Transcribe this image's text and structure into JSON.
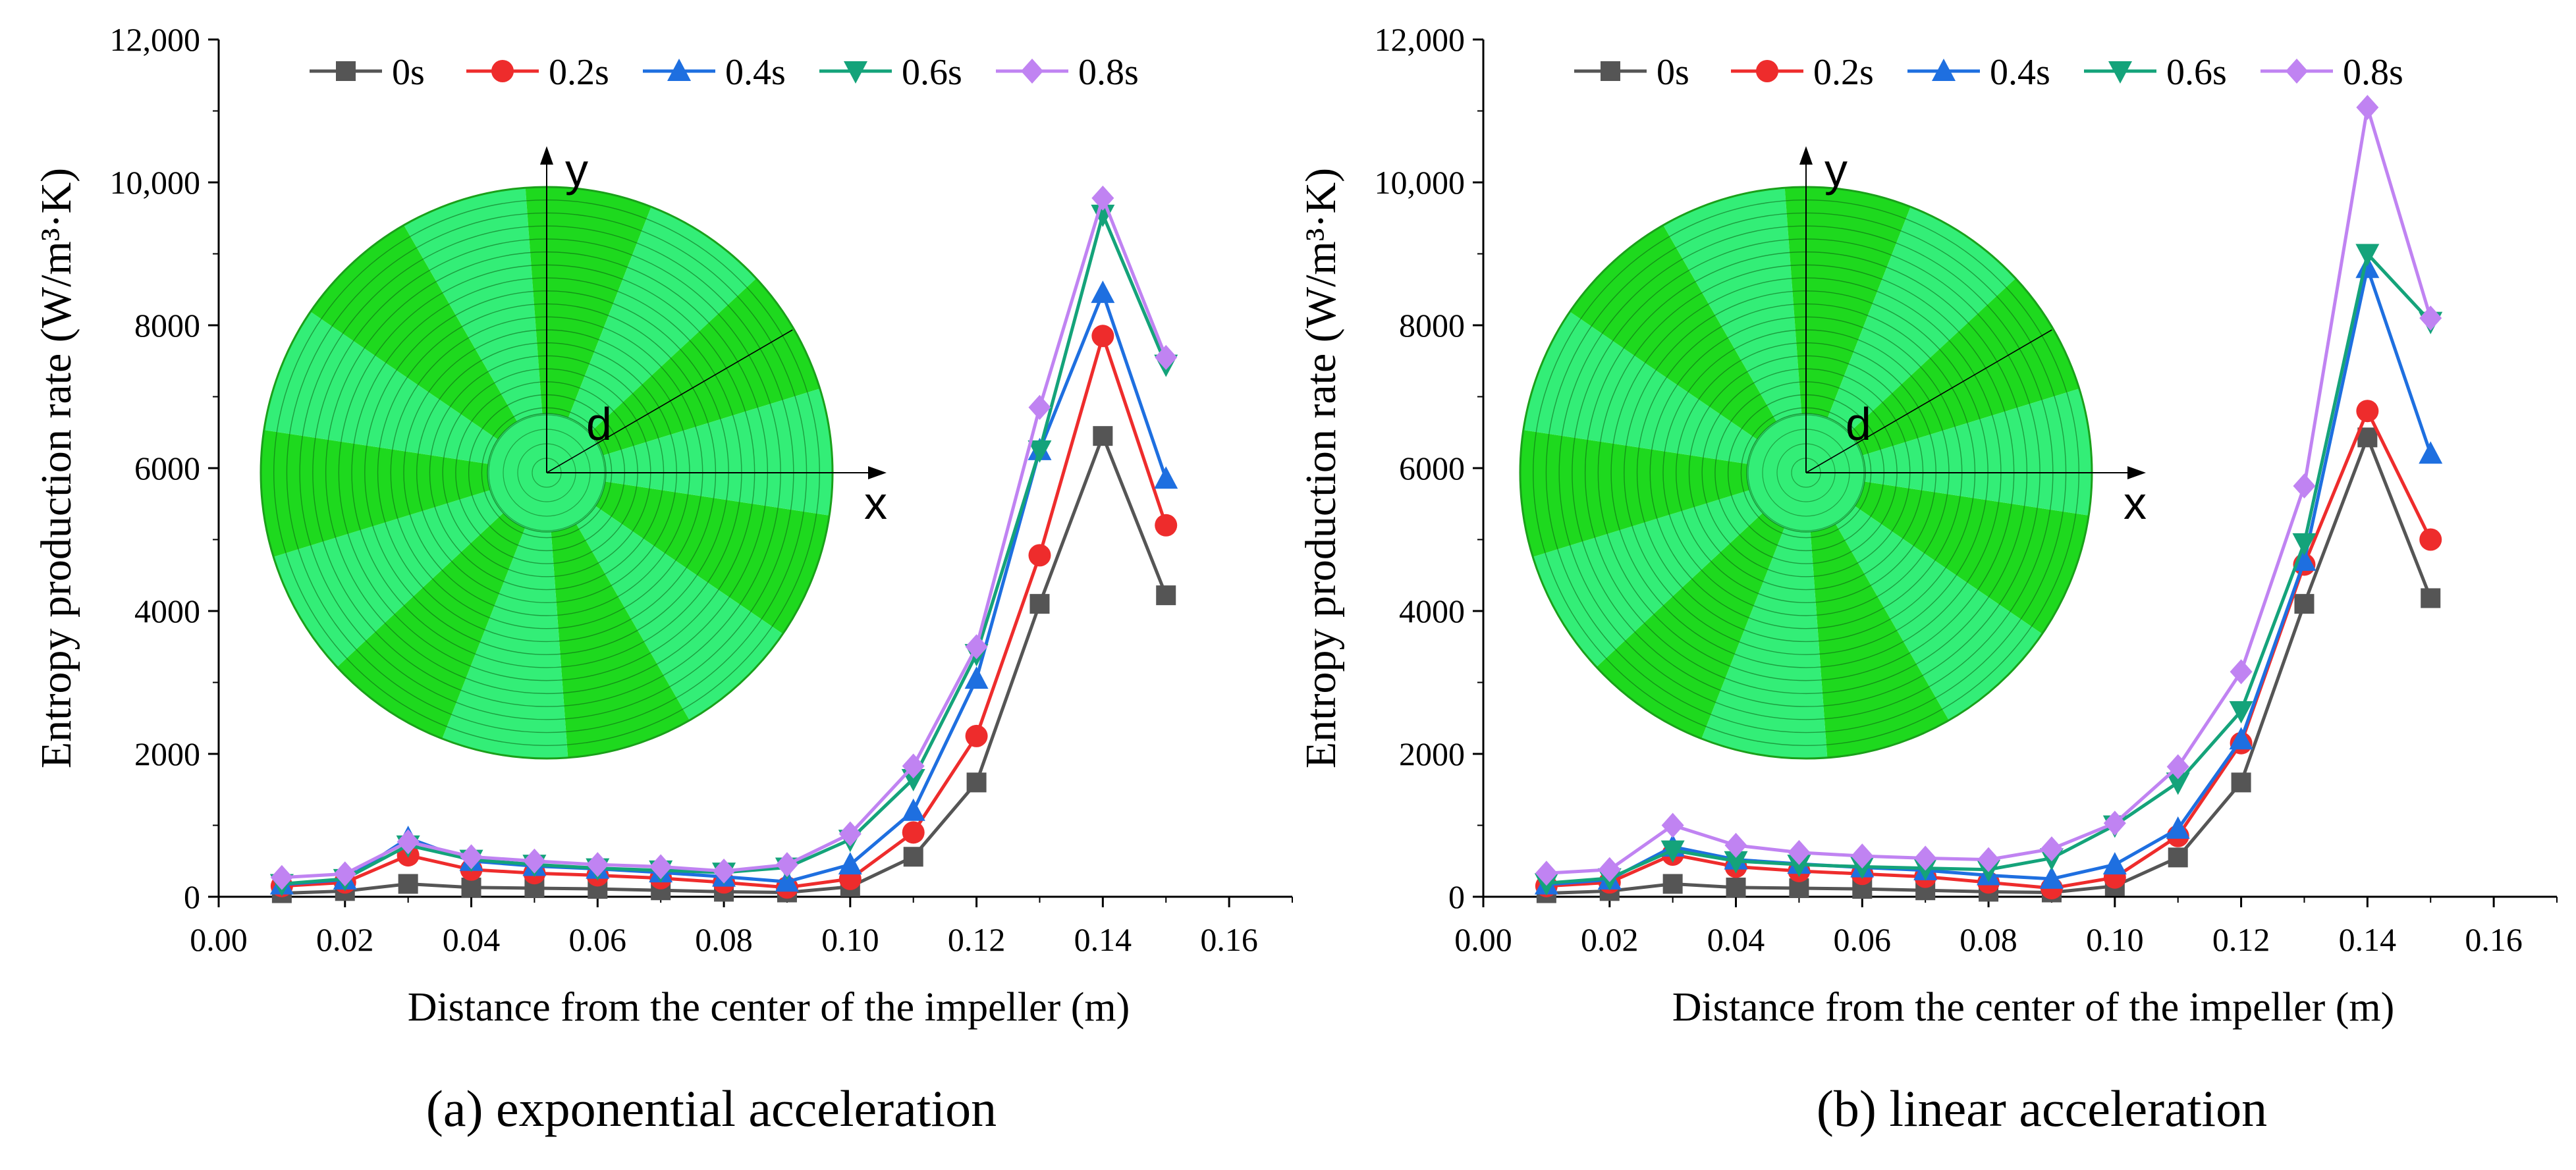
{
  "figure": {
    "legend_items": [
      "0s",
      "0.2s",
      "0.4s",
      "0.6s",
      "0.8s"
    ],
    "series_colors": [
      "#555555",
      "#ee2c2c",
      "#1e6fe0",
      "#14a37a",
      "#c083f2"
    ],
    "series_markers": [
      "square",
      "circle",
      "triangle-up",
      "triangle-down",
      "diamond"
    ],
    "inset_axis_labels": {
      "x": "x",
      "y": "y",
      "radius": "d"
    },
    "inset_colors": {
      "dark_green": "#1ed91e",
      "light_green": "#33ee77"
    }
  },
  "chart_data": [
    {
      "type": "line",
      "caption": "(a) exponential acceleration",
      "xlabel": "Distance from the center of the impeller (m)",
      "ylabel": "Entropy production rate (W/m³·K)",
      "xlim": [
        0.0,
        0.17
      ],
      "ylim": [
        0,
        12000
      ],
      "xticks": [
        "0.00",
        "0.02",
        "0.04",
        "0.06",
        "0.08",
        "0.10",
        "0.12",
        "0.14",
        "0.16"
      ],
      "yticks": [
        "0",
        "2000",
        "4000",
        "6000",
        "8000",
        "10,000",
        "12,000"
      ],
      "x": [
        0.01,
        0.02,
        0.03,
        0.04,
        0.05,
        0.06,
        0.07,
        0.08,
        0.09,
        0.1,
        0.11,
        0.12,
        0.13,
        0.14,
        0.15
      ],
      "series": [
        {
          "name": "0s",
          "values": [
            50,
            80,
            180,
            130,
            120,
            110,
            90,
            70,
            60,
            140,
            560,
            1600,
            4100,
            6450,
            4220
          ]
        },
        {
          "name": "0.2s",
          "values": [
            150,
            200,
            580,
            380,
            330,
            300,
            260,
            200,
            130,
            250,
            900,
            2250,
            4780,
            7850,
            5200
          ]
        },
        {
          "name": "0.4s",
          "values": [
            170,
            240,
            820,
            500,
            430,
            390,
            340,
            280,
            210,
            450,
            1200,
            3050,
            6250,
            8450,
            5850
          ]
        },
        {
          "name": "0.6s",
          "values": [
            180,
            250,
            720,
            520,
            450,
            400,
            370,
            340,
            410,
            800,
            1650,
            3400,
            6250,
            9550,
            7450
          ]
        },
        {
          "name": "0.8s",
          "values": [
            270,
            320,
            770,
            560,
            500,
            450,
            420,
            360,
            450,
            880,
            1830,
            3500,
            6850,
            9780,
            7550
          ]
        }
      ]
    },
    {
      "type": "line",
      "caption": "(b) linear acceleration",
      "xlabel": "Distance from the center of the impeller (m)",
      "ylabel": "Entropy production rate (W/m³·K)",
      "xlim": [
        0.0,
        0.17
      ],
      "ylim": [
        0,
        12000
      ],
      "xticks": [
        "0.00",
        "0.02",
        "0.04",
        "0.06",
        "0.08",
        "0.10",
        "0.12",
        "0.14",
        "0.16"
      ],
      "yticks": [
        "0",
        "2000",
        "4000",
        "6000",
        "8000",
        "10,000",
        "12,000"
      ],
      "x": [
        0.01,
        0.02,
        0.03,
        0.04,
        0.05,
        0.06,
        0.07,
        0.08,
        0.09,
        0.1,
        0.11,
        0.12,
        0.13,
        0.14,
        0.15
      ],
      "series": [
        {
          "name": "0s",
          "values": [
            50,
            80,
            180,
            130,
            120,
            110,
            90,
            70,
            60,
            150,
            550,
            1600,
            4100,
            6430,
            4180
          ]
        },
        {
          "name": "0.2s",
          "values": [
            150,
            200,
            590,
            420,
            360,
            320,
            280,
            200,
            120,
            270,
            850,
            2150,
            4650,
            6800,
            5000
          ]
        },
        {
          "name": "0.4s",
          "values": [
            170,
            240,
            700,
            520,
            460,
            410,
            370,
            300,
            250,
            450,
            950,
            2200,
            4700,
            8800,
            6200
          ]
        },
        {
          "name": "0.6s",
          "values": [
            190,
            260,
            650,
            500,
            450,
            420,
            400,
            380,
            540,
            1000,
            1600,
            2600,
            4950,
            9000,
            8050
          ]
        },
        {
          "name": "0.8s",
          "values": [
            330,
            380,
            1000,
            720,
            620,
            570,
            540,
            520,
            670,
            1030,
            1820,
            3150,
            5750,
            11050,
            8100
          ]
        }
      ]
    }
  ]
}
